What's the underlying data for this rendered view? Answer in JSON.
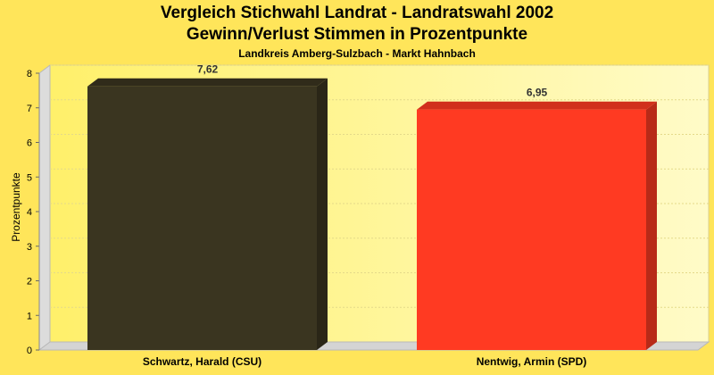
{
  "chart_data": {
    "type": "bar",
    "title": "Vergleich Stichwahl Landrat - Landratswahl 2002",
    "subtitle_line2": "Gewinn/Verlust Stimmen in Prozentpunkte",
    "subtitle": "Landkreis Amberg-Sulzbach - Markt Hahnbach",
    "xlabel": "",
    "ylabel": "Prozentpunkte",
    "ylim": [
      0,
      8
    ],
    "yticks": [
      0,
      1,
      2,
      3,
      4,
      5,
      6,
      7,
      8
    ],
    "grid": true,
    "categories": [
      "Schwartz, Harald (CSU)",
      "Nentwig, Armin (SPD)"
    ],
    "values": [
      7.62,
      6.95
    ],
    "value_labels": [
      "7,62",
      "6,95"
    ],
    "colors": [
      "#3a3520",
      "#ff3a22"
    ]
  }
}
